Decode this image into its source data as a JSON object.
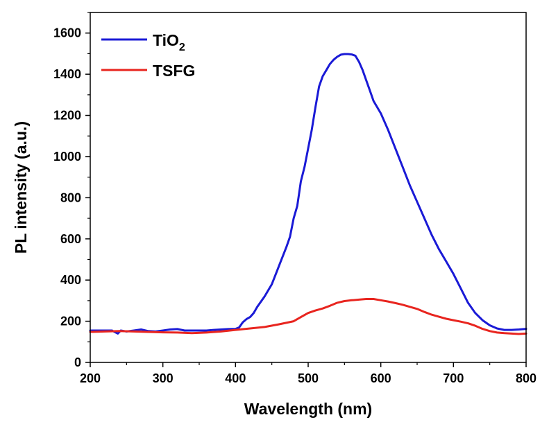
{
  "chart_data": {
    "type": "line",
    "xlabel": "Wavelength (nm)",
    "ylabel": "PL intensity (a.u.)",
    "xlim": [
      200,
      800
    ],
    "ylim": [
      0,
      1700
    ],
    "xticks": [
      200,
      300,
      400,
      500,
      600,
      700,
      800
    ],
    "yticks": [
      0,
      200,
      400,
      600,
      800,
      1000,
      1200,
      1400,
      1600
    ],
    "legend_position": "top-left",
    "series": [
      {
        "name": "TiO2",
        "label_main": "TiO",
        "label_sub": "2",
        "color": "#1a1ad6",
        "x": [
          200,
          220,
          230,
          238,
          242,
          250,
          260,
          270,
          280,
          290,
          300,
          310,
          320,
          330,
          340,
          350,
          360,
          370,
          380,
          390,
          400,
          405,
          410,
          415,
          420,
          425,
          430,
          440,
          450,
          460,
          470,
          475,
          480,
          485,
          490,
          495,
          500,
          505,
          510,
          515,
          520,
          525,
          530,
          535,
          540,
          545,
          550,
          555,
          560,
          565,
          570,
          575,
          580,
          585,
          590,
          600,
          610,
          620,
          630,
          640,
          650,
          660,
          670,
          680,
          690,
          700,
          710,
          720,
          730,
          740,
          750,
          760,
          770,
          780,
          790,
          800
        ],
        "values": [
          155,
          155,
          155,
          140,
          155,
          150,
          155,
          160,
          152,
          150,
          155,
          160,
          162,
          155,
          155,
          155,
          155,
          158,
          160,
          162,
          163,
          170,
          195,
          210,
          220,
          240,
          270,
          320,
          380,
          470,
          560,
          610,
          700,
          760,
          880,
          950,
          1040,
          1130,
          1240,
          1340,
          1390,
          1420,
          1450,
          1470,
          1485,
          1495,
          1498,
          1498,
          1496,
          1490,
          1460,
          1420,
          1370,
          1320,
          1270,
          1210,
          1130,
          1040,
          950,
          860,
          780,
          700,
          620,
          550,
          490,
          430,
          360,
          290,
          240,
          205,
          180,
          165,
          158,
          158,
          160,
          163
        ]
      },
      {
        "name": "TSFG",
        "label_main": "TSFG",
        "label_sub": "",
        "color": "#e8251f",
        "x": [
          200,
          220,
          240,
          260,
          280,
          300,
          320,
          340,
          360,
          380,
          400,
          420,
          440,
          460,
          480,
          490,
          500,
          510,
          520,
          530,
          540,
          550,
          560,
          570,
          580,
          590,
          600,
          610,
          620,
          630,
          640,
          650,
          660,
          670,
          680,
          690,
          700,
          710,
          720,
          730,
          740,
          750,
          760,
          770,
          780,
          790,
          800
        ],
        "values": [
          148,
          150,
          152,
          150,
          148,
          146,
          145,
          142,
          145,
          150,
          158,
          165,
          172,
          185,
          200,
          220,
          240,
          252,
          262,
          275,
          290,
          298,
          302,
          305,
          308,
          308,
          302,
          296,
          288,
          280,
          270,
          260,
          245,
          232,
          222,
          212,
          205,
          198,
          190,
          178,
          163,
          152,
          145,
          142,
          140,
          138,
          140
        ]
      }
    ]
  }
}
